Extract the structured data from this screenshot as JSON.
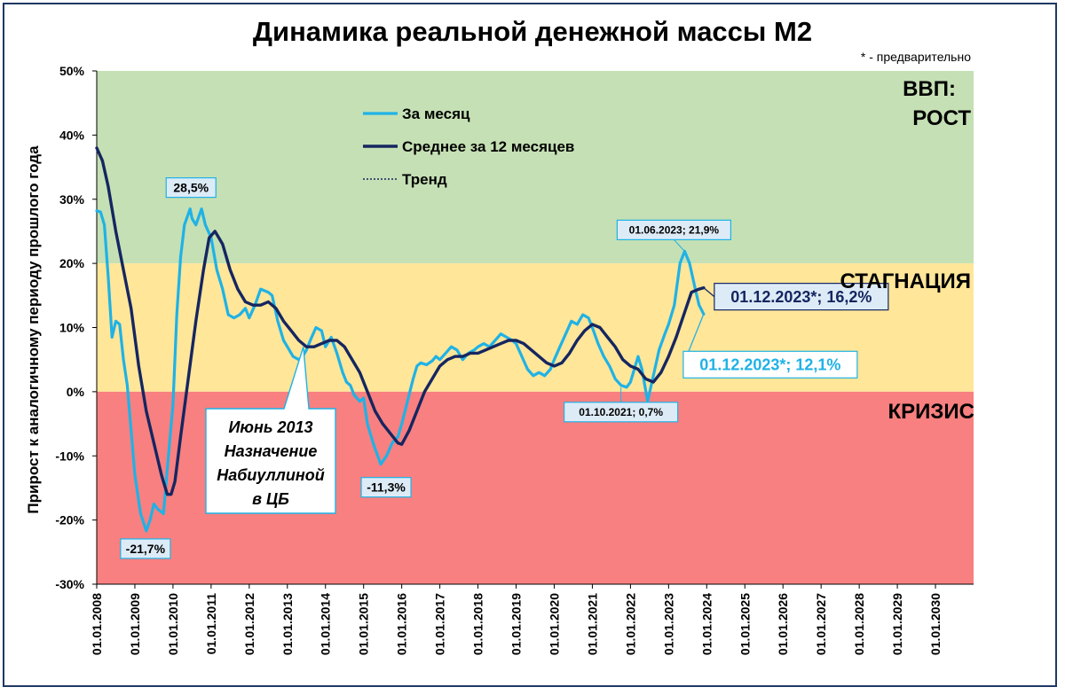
{
  "title": "Динамика реальной денежной массы М2",
  "note": "* - предварительно",
  "colors": {
    "grow": "#c5e0b4",
    "stag": "#ffe699",
    "crisis": "#f88080",
    "monthly": "#1fb2e6",
    "avg": "#152660",
    "axis": "#000000"
  },
  "zones": {
    "grow_line1": "ВВП:",
    "grow_line2": "РОСТ",
    "stag": "СТАГНАЦИЯ",
    "crisis": "КРИЗИС"
  },
  "chart_data": {
    "type": "line",
    "title": "Динамика реальной денежной массы М2",
    "ylabel": "Прирост к аналогичному периоду прошлого года",
    "ylim": [
      -30,
      50
    ],
    "yticks": [
      "-30%",
      "-20%",
      "-10%",
      "0%",
      "10%",
      "20%",
      "30%",
      "40%",
      "50%"
    ],
    "xlim": [
      2008,
      2031
    ],
    "xticks": [
      "01.01.2008",
      "01.01.2009",
      "01.01.2010",
      "01.01.2011",
      "01.01.2012",
      "01.01.2013",
      "01.01.2014",
      "01.01.2015",
      "01.01.2016",
      "01.01.2017",
      "01.01.2018",
      "01.01.2019",
      "01.01.2020",
      "01.01.2021",
      "01.01.2022",
      "01.01.2023",
      "01.01.2024",
      "01.01.2025",
      "01.01.2026",
      "01.01.2027",
      "01.01.2028",
      "01.01.2029",
      "01.01.2030"
    ],
    "legend": "top-center",
    "series": [
      {
        "name": "За месяц",
        "style": "monthly",
        "x": [
          2008.0,
          2008.1,
          2008.2,
          2008.3,
          2008.4,
          2008.5,
          2008.6,
          2008.7,
          2008.8,
          2008.9,
          2009.0,
          2009.15,
          2009.3,
          2009.4,
          2009.5,
          2009.6,
          2009.75,
          2009.85,
          2010.0,
          2010.1,
          2010.2,
          2010.3,
          2010.45,
          2010.5,
          2010.6,
          2010.75,
          2010.85,
          2011.0,
          2011.15,
          2011.3,
          2011.45,
          2011.6,
          2011.75,
          2011.9,
          2012.0,
          2012.15,
          2012.3,
          2012.5,
          2012.6,
          2012.75,
          2012.9,
          2013.0,
          2013.15,
          2013.3,
          2013.4,
          2013.5,
          2013.6,
          2013.75,
          2013.9,
          2014.0,
          2014.15,
          2014.3,
          2014.45,
          2014.55,
          2014.65,
          2014.75,
          2014.9,
          2015.0,
          2015.1,
          2015.25,
          2015.45,
          2015.6,
          2015.75,
          2015.9,
          2016.0,
          2016.15,
          2016.3,
          2016.4,
          2016.5,
          2016.65,
          2016.8,
          2016.9,
          2017.0,
          2017.15,
          2017.3,
          2017.45,
          2017.6,
          2017.75,
          2017.9,
          2018.0,
          2018.15,
          2018.3,
          2018.45,
          2018.6,
          2018.75,
          2018.9,
          2019.0,
          2019.15,
          2019.3,
          2019.45,
          2019.6,
          2019.75,
          2019.9,
          2020.0,
          2020.15,
          2020.3,
          2020.45,
          2020.6,
          2020.75,
          2020.9,
          2021.0,
          2021.15,
          2021.3,
          2021.45,
          2021.6,
          2021.75,
          2021.9,
          2022.0,
          2022.1,
          2022.2,
          2022.3,
          2022.45,
          2022.6,
          2022.75,
          2022.9,
          2023.0,
          2023.15,
          2023.3,
          2023.42,
          2023.55,
          2023.7,
          2023.8,
          2023.92
        ],
        "y": [
          28.2,
          28,
          26,
          18,
          8.5,
          11,
          10.5,
          5,
          1,
          -6,
          -13,
          -19,
          -21.7,
          -20,
          -17.5,
          -18.3,
          -19,
          -12,
          -2,
          12,
          21,
          26,
          28.5,
          27,
          26,
          28.5,
          26,
          24,
          19,
          16,
          12,
          11.5,
          12,
          13,
          11.5,
          13.5,
          16,
          15.5,
          15,
          11,
          8,
          7,
          5.5,
          5,
          5.5,
          6.5,
          8,
          10,
          9.5,
          7,
          8.5,
          6,
          3,
          1.5,
          1,
          -0.5,
          -1.5,
          -1,
          -5,
          -8,
          -11.3,
          -10,
          -8,
          -7,
          -5,
          -1.5,
          2,
          4,
          4.5,
          4.2,
          4.8,
          5.5,
          5,
          6,
          7,
          6.5,
          5,
          6,
          6.5,
          7,
          7.5,
          7,
          8,
          9,
          8.5,
          8,
          7.5,
          5.5,
          3.5,
          2.5,
          3,
          2.5,
          3.5,
          5,
          7,
          9,
          11,
          10.5,
          12,
          11.5,
          10,
          7.5,
          5.5,
          4,
          2,
          1,
          0.7,
          1.5,
          3.5,
          5.5,
          3.5,
          -1.5,
          2.5,
          6.5,
          9,
          10.5,
          13.5,
          20,
          21.9,
          20,
          16,
          13.5,
          12.1
        ]
      },
      {
        "name": "Среднее за 12 месяцев",
        "style": "avg",
        "x": [
          2008.0,
          2008.15,
          2008.3,
          2008.5,
          2008.7,
          2008.9,
          2009.1,
          2009.3,
          2009.5,
          2009.7,
          2009.85,
          2009.95,
          2010.05,
          2010.2,
          2010.4,
          2010.6,
          2010.8,
          2010.95,
          2011.1,
          2011.3,
          2011.5,
          2011.7,
          2011.9,
          2012.1,
          2012.3,
          2012.5,
          2012.7,
          2012.9,
          2013.1,
          2013.3,
          2013.5,
          2013.7,
          2013.9,
          2014.1,
          2014.3,
          2014.5,
          2014.7,
          2014.9,
          2015.1,
          2015.3,
          2015.5,
          2015.7,
          2015.9,
          2016.0,
          2016.2,
          2016.4,
          2016.6,
          2016.8,
          2017.0,
          2017.2,
          2017.4,
          2017.6,
          2017.8,
          2018.0,
          2018.2,
          2018.4,
          2018.6,
          2018.8,
          2019.0,
          2019.2,
          2019.4,
          2019.6,
          2019.8,
          2020.0,
          2020.2,
          2020.4,
          2020.6,
          2020.8,
          2021.0,
          2021.2,
          2021.4,
          2021.6,
          2021.8,
          2022.0,
          2022.2,
          2022.4,
          2022.6,
          2022.8,
          2023.0,
          2023.2,
          2023.4,
          2023.6,
          2023.8,
          2023.92
        ],
        "y": [
          38,
          36,
          32,
          25,
          19,
          13,
          4,
          -3,
          -8,
          -13,
          -16,
          -16,
          -14,
          -7,
          2,
          11,
          19,
          24,
          25,
          23,
          19,
          16,
          14,
          13.5,
          13.5,
          14,
          13,
          11,
          9.5,
          8,
          7,
          7,
          7.5,
          8,
          8,
          7,
          5,
          3,
          0,
          -3,
          -5,
          -6.5,
          -8,
          -8.2,
          -6,
          -3,
          0,
          2,
          4,
          5,
          5.5,
          5.5,
          6,
          6,
          6.5,
          7,
          7.5,
          8,
          8,
          7.5,
          6.5,
          5.5,
          4.5,
          4,
          4.5,
          6,
          8,
          9.5,
          10.5,
          10,
          8.5,
          7,
          5,
          4,
          3.5,
          2,
          1.5,
          3,
          5.5,
          8.5,
          12,
          15.5,
          16,
          16.2
        ]
      },
      {
        "name": "Тренд",
        "style": "trend",
        "x": [],
        "y": []
      }
    ],
    "annotations": [
      {
        "text": "28,5%",
        "x": 2010.45,
        "y": 28.5,
        "style": "monthly",
        "box": "small"
      },
      {
        "text": "-21,7%",
        "x": 2009.3,
        "y": -21.7,
        "style": "monthly",
        "box": "small"
      },
      {
        "text": "-11,3%",
        "x": 2015.45,
        "y": -11.3,
        "style": "monthly",
        "box": "small"
      },
      {
        "text": "01.10.2021; 0,7%",
        "x": 2021.75,
        "y": 0.7,
        "style": "monthly",
        "box": "tiny"
      },
      {
        "text": "01.06.2023; 21,9%",
        "x": 2023.42,
        "y": 21.9,
        "style": "monthly",
        "box": "tiny"
      },
      {
        "text": "01.12.2023*; 16,2%",
        "x": 2023.92,
        "y": 16.2,
        "style": "avg",
        "box": "big"
      },
      {
        "text": "01.12.2023*; 12,1%",
        "x": 2023.92,
        "y": 12.1,
        "style": "monthly",
        "box": "bigcyan"
      }
    ],
    "callout": {
      "lines": [
        "Июнь 2013",
        "Назначение",
        "Набиуллиной",
        "в ЦБ"
      ],
      "x": 2013.42,
      "y": 7.0
    }
  }
}
